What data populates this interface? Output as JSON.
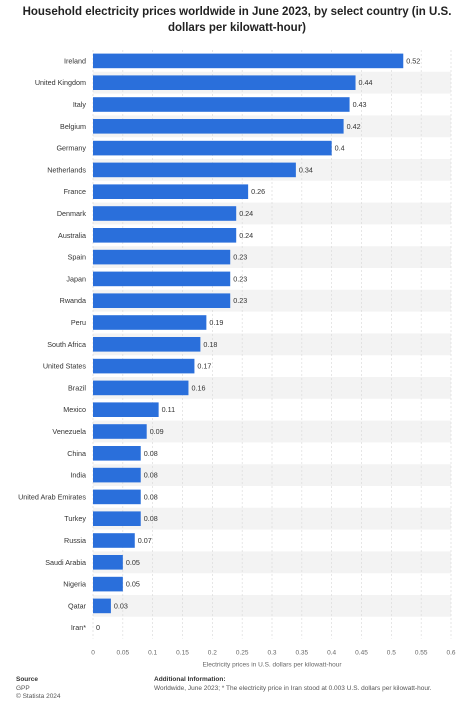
{
  "title": "Household electricity prices worldwide in June 2023, by select country (in U.S. dollars per kilowatt-hour)",
  "chart_data": {
    "type": "bar",
    "orientation": "horizontal",
    "categories": [
      "Ireland",
      "United Kingdom",
      "Italy",
      "Belgium",
      "Germany",
      "Netherlands",
      "France",
      "Denmark",
      "Australia",
      "Spain",
      "Japan",
      "Rwanda",
      "Peru",
      "South Africa",
      "United States",
      "Brazil",
      "Mexico",
      "Venezuela",
      "China",
      "India",
      "United Arab Emirates",
      "Turkey",
      "Russia",
      "Saudi Arabia",
      "Nigeria",
      "Qatar",
      "Iran*"
    ],
    "values": [
      0.52,
      0.44,
      0.43,
      0.42,
      0.4,
      0.34,
      0.26,
      0.24,
      0.24,
      0.23,
      0.23,
      0.23,
      0.19,
      0.18,
      0.17,
      0.16,
      0.11,
      0.09,
      0.08,
      0.08,
      0.08,
      0.08,
      0.07,
      0.05,
      0.05,
      0.03,
      0
    ],
    "value_labels": [
      "0.52",
      "0.44",
      "0.43",
      "0.42",
      "0.4",
      "0.34",
      "0.26",
      "0.24",
      "0.24",
      "0.23",
      "0.23",
      "0.23",
      "0.19",
      "0.18",
      "0.17",
      "0.16",
      "0.11",
      "0.09",
      "0.08",
      "0.08",
      "0.08",
      "0.08",
      "0.07",
      "0.05",
      "0.05",
      "0.03",
      "0"
    ],
    "xlabel": "Electricity prices in U.S. dollars per kilowatt-hour",
    "xlim": [
      0,
      0.6
    ],
    "ticks": [
      "0",
      "0.05",
      "0.1",
      "0.15",
      "0.2",
      "0.25",
      "0.3",
      "0.35",
      "0.4",
      "0.45",
      "0.5",
      "0.55",
      "0.6"
    ],
    "grid": true,
    "bar_color": "#2a6fdb",
    "band_color": "#f3f3f3"
  },
  "footer": {
    "source_heading": "Source",
    "source_lines": [
      "GPP",
      "© Statista 2024"
    ],
    "info_heading": "Additional Information:",
    "info_text": "Worldwide, June 2023; * The electricity price in Iran stood at 0.003 U.S. dollars per kilowatt-hour."
  }
}
